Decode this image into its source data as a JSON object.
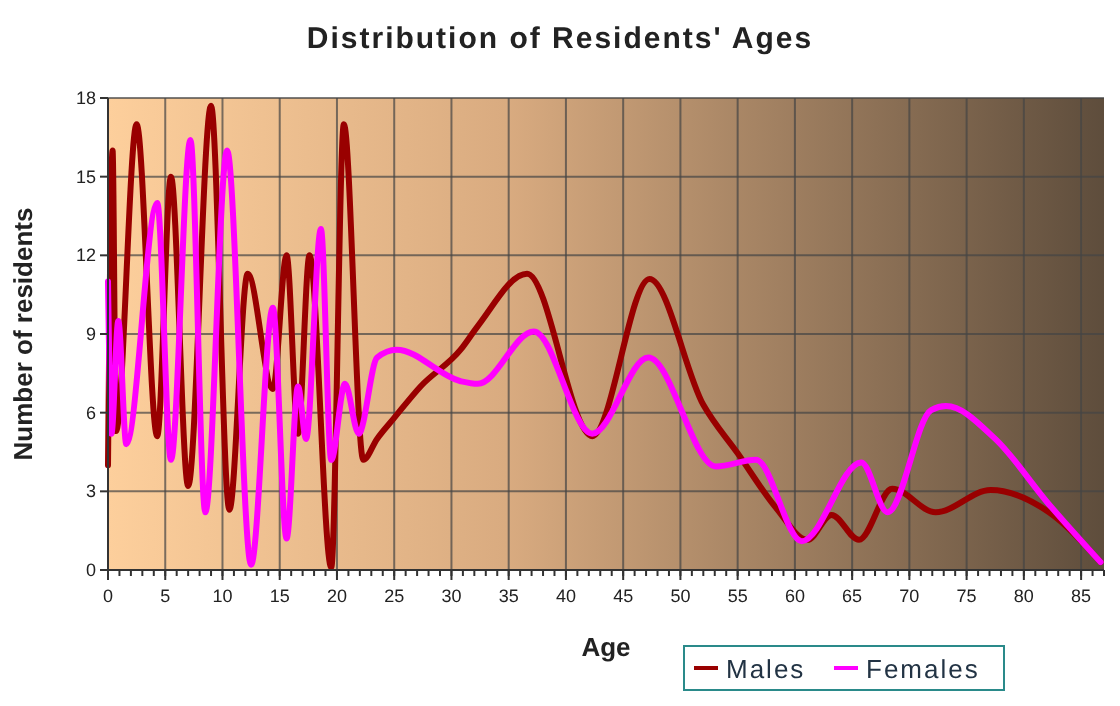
{
  "chart_data": {
    "type": "line",
    "title": "Distribution of Residents' Ages",
    "xlabel": "Age",
    "ylabel": "Number of residents",
    "xlim": [
      0,
      87
    ],
    "xticks": [
      0,
      5,
      10,
      15,
      20,
      25,
      30,
      35,
      40,
      45,
      50,
      55,
      60,
      65,
      70,
      75,
      80,
      85
    ],
    "ylim": [
      0,
      18
    ],
    "yticks": [
      0,
      3,
      6,
      9,
      12,
      15,
      18
    ],
    "grid": true,
    "legend": "bottom",
    "line_style": "solid",
    "series": [
      {
        "name": "Males",
        "color": "#990000",
        "x": [
          0,
          0.4,
          0.7,
          2.5,
          4.3,
          5.5,
          7,
          9,
          10.6,
          12.2,
          14.4,
          15.6,
          16.6,
          17.6,
          19.5,
          20.6,
          22.3,
          23.5,
          25,
          27.3,
          30.8,
          32.3,
          36.6,
          42.3,
          47.3,
          52,
          55,
          58.3,
          61.1,
          63.2,
          65.6,
          68.5,
          72.3,
          77.1,
          82.2,
          86.7
        ],
        "values": [
          4,
          16,
          5.3,
          17,
          5.1,
          15,
          3.2,
          17.7,
          2.3,
          11.3,
          6.9,
          12,
          5.2,
          12,
          0.1,
          17,
          4.2,
          5,
          5.8,
          7,
          8.4,
          9.3,
          11.3,
          5.1,
          11.1,
          6.3,
          4.45,
          2.4,
          1.15,
          2.1,
          1.15,
          3.1,
          2.2,
          3.05,
          2.2,
          0.3
        ]
      },
      {
        "name": "Females",
        "color": "#ff00ff",
        "x": [
          0,
          0.3,
          0.9,
          1.6,
          4.3,
          5.5,
          7.2,
          8.5,
          10.4,
          12.5,
          14.4,
          15.6,
          16.6,
          17.3,
          18.6,
          19.5,
          20.7,
          21.9,
          23.5,
          25.2,
          30.8,
          32.3,
          37.2,
          42.3,
          47.2,
          53.1,
          56.6,
          60.6,
          65.8,
          68.1,
          71.9,
          73.2,
          77.5,
          82.2,
          86.7
        ],
        "values": [
          11,
          5.2,
          9.5,
          4.8,
          14,
          4.2,
          16.4,
          2.2,
          16,
          0.2,
          10,
          1.2,
          7,
          5,
          13,
          4.2,
          7.1,
          5.2,
          8.1,
          8.4,
          7.2,
          7.1,
          9.1,
          5.2,
          8.1,
          3.95,
          4.2,
          1.1,
          4.1,
          2.2,
          6.1,
          6.25,
          5,
          2.5,
          0.3
        ]
      }
    ]
  }
}
